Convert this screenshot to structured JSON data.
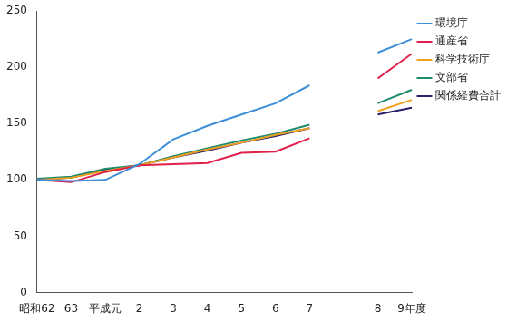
{
  "chart_data": {
    "type": "line",
    "categories": [
      "昭和62",
      "63",
      "平成元",
      "2",
      "3",
      "4",
      "5",
      "6",
      "7",
      null,
      "8",
      "9年度"
    ],
    "series": [
      {
        "name": "環境庁",
        "color": "#3d8fd8",
        "values": [
          100,
          99,
          100,
          114,
          136,
          148,
          158,
          168,
          184,
          null,
          213,
          225
        ]
      },
      {
        "name": "通産省",
        "color": "#e0204a",
        "values": [
          100,
          98,
          107,
          113,
          114,
          115,
          124,
          125,
          137,
          null,
          190,
          212
        ]
      },
      {
        "name": "科学技術庁",
        "color": "#f0a020",
        "values": [
          100,
          102,
          108,
          113,
          120,
          127,
          133,
          140,
          146,
          null,
          161,
          171
        ]
      },
      {
        "name": "文部省",
        "color": "#1e8a6e",
        "values": [
          101,
          103,
          110,
          113,
          121,
          128,
          135,
          141,
          149,
          null,
          168,
          180
        ]
      },
      {
        "name": "関係経費合計",
        "color": "#28206e",
        "values": [
          100,
          102,
          109,
          113,
          120,
          126,
          133,
          139,
          146,
          null,
          158,
          164
        ]
      }
    ],
    "ylim": [
      0,
      250
    ],
    "yticks": [
      0,
      50,
      100,
      150,
      200,
      250
    ],
    "grid": false,
    "legend": "right"
  }
}
